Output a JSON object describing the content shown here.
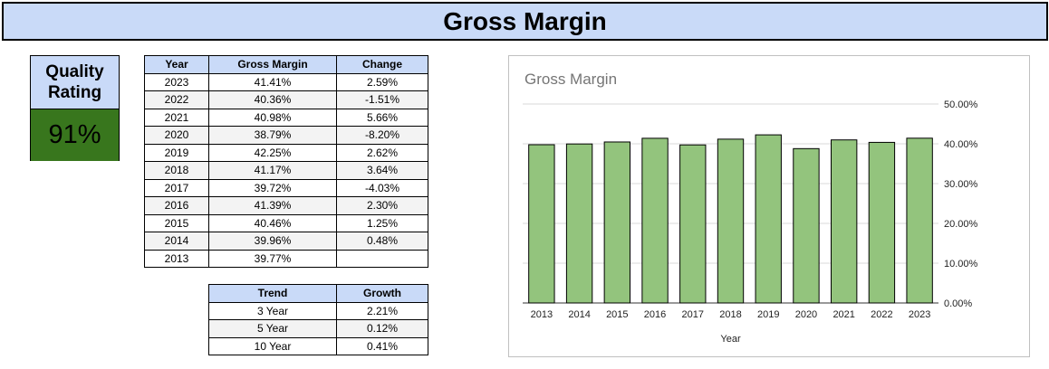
{
  "header": {
    "title": "Gross Margin"
  },
  "quality": {
    "line1": "Quality",
    "line2": "Rating",
    "value": "91%"
  },
  "main_table": {
    "headers": [
      "Year",
      "Gross Margin",
      "Change"
    ],
    "rows": [
      [
        "2023",
        "41.41%",
        "2.59%"
      ],
      [
        "2022",
        "40.36%",
        "-1.51%"
      ],
      [
        "2021",
        "40.98%",
        "5.66%"
      ],
      [
        "2020",
        "38.79%",
        "-8.20%"
      ],
      [
        "2019",
        "42.25%",
        "2.62%"
      ],
      [
        "2018",
        "41.17%",
        "3.64%"
      ],
      [
        "2017",
        "39.72%",
        "-4.03%"
      ],
      [
        "2016",
        "41.39%",
        "2.30%"
      ],
      [
        "2015",
        "40.46%",
        "1.25%"
      ],
      [
        "2014",
        "39.96%",
        "0.48%"
      ],
      [
        "2013",
        "39.77%",
        ""
      ]
    ]
  },
  "trend_table": {
    "headers": [
      "Trend",
      "Growth"
    ],
    "rows": [
      [
        "3 Year",
        "2.21%"
      ],
      [
        "5 Year",
        "0.12%"
      ],
      [
        "10 Year",
        "0.41%"
      ]
    ]
  },
  "chart_data": {
    "type": "bar",
    "title": "Gross Margin",
    "xlabel": "Year",
    "ylabel": "",
    "categories": [
      "2013",
      "2014",
      "2015",
      "2016",
      "2017",
      "2018",
      "2019",
      "2020",
      "2021",
      "2022",
      "2023"
    ],
    "values": [
      39.77,
      39.96,
      40.46,
      41.39,
      39.72,
      41.17,
      42.25,
      38.79,
      40.98,
      40.36,
      41.41
    ],
    "ylim": [
      0,
      50
    ],
    "yticks": [
      "0.00%",
      "10.00%",
      "20.00%",
      "30.00%",
      "40.00%",
      "50.00%"
    ],
    "grid": true,
    "bar_color": "#93c47d"
  }
}
